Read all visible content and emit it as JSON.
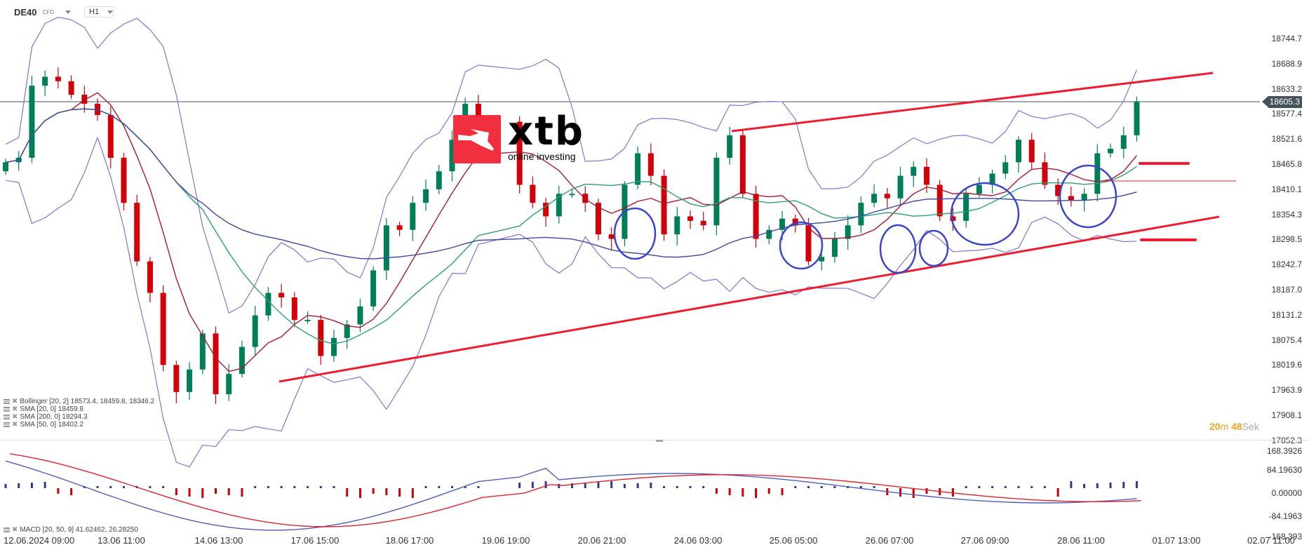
{
  "header": {
    "symbol": "DE40",
    "symbol_type": "CFD",
    "timeframe": "H1"
  },
  "logo": {
    "wordmark": "xtb",
    "tagline": "online investing",
    "brand_color": "#f12f3f"
  },
  "current_price": "18605.3",
  "timer": {
    "minutes": "20",
    "min_unit": "m",
    "seconds": "48",
    "sec_unit": "Sek"
  },
  "colors": {
    "bull": "#007e57",
    "bear": "#d40008",
    "bollinger": "#8a6fd6",
    "sma20": "#a81a2e",
    "sma50": "#2f9e77",
    "sma200": "#3a4aa0",
    "trendline": "#ee1c2e",
    "circle": "#3a46c8",
    "macd": "#4f5fb8",
    "signal": "#e0242f",
    "hist_pos": "#2e3a96",
    "hist_neg": "#cc0000"
  },
  "legend": [
    {
      "label": "Bollinger  [20, 2] 18573.4,  18459.8,  18346.2"
    },
    {
      "label": "SMA [20, 0] 18459.8"
    },
    {
      "label": "SMA [200, 0] 18294.3"
    },
    {
      "label": "SMA [50, 0] 18402.2"
    }
  ],
  "macd_legend": {
    "label": "MACD  [20, 50, 9] 41.62462,  26.28250"
  },
  "chart_data": [
    {
      "type": "candlestick",
      "title": "DE40 CFD H1",
      "xlabel": "",
      "ylabel": "",
      "ylim": [
        17852.3,
        18744.7
      ],
      "grid": false,
      "y_ticks": [
        "18744.7",
        "18688.9",
        "18633.2",
        "18577.4",
        "18521.6",
        "18465.8",
        "18410.1",
        "18354.3",
        "18298.5",
        "18242.7",
        "18187.0",
        "18131.2",
        "18075.4",
        "18019.6",
        "17963.9",
        "17908.1",
        "17852.3"
      ],
      "x_ticks": [
        "12.06.2024  09:00",
        "13.06  11:00",
        "14.06  13:00",
        "17.06  15:00",
        "18.06  17:00",
        "19.06  19:00",
        "20.06  21:00",
        "24.06  03:00",
        "25.06  05:00",
        "26.06  07:00",
        "27.06  09:00",
        "28.06  11:00",
        "01.07  13:00",
        "02.07  11:00"
      ],
      "last_price": 18605.3,
      "indicators": [
        {
          "name": "Bollinger [20, 2]",
          "values": [
            18573.4,
            18459.8,
            18346.2
          ]
        },
        {
          "name": "SMA [20, 0]",
          "value": 18459.8
        },
        {
          "name": "SMA [200, 0]",
          "value": 18294.3
        },
        {
          "name": "SMA [50, 0]",
          "value": 18402.2
        }
      ],
      "annotations": [
        "Rising channel: lower trendline from ~17.06 low (~18000) to ~18330 by 01.07; upper trendline from ~24.06 (~18540) to ~18650",
        "Blue circles marking pullbacks to support: 20.06, 25.06, 26.06, 26.06, 27.06, 28.06",
        "Short red horizontal marks near 18470 and 18290 right of last candle; thin red line near 18420"
      ],
      "candles_approx_close": [
        18470,
        18480,
        18640,
        18660,
        18650,
        18620,
        18600,
        18575,
        18480,
        18380,
        18250,
        18180,
        18020,
        17960,
        18010,
        18090,
        17955,
        18000,
        18060,
        18130,
        18180,
        18170,
        18120,
        18120,
        18040,
        18080,
        18110,
        18150,
        18230,
        18330,
        18320,
        18380,
        18410,
        18450,
        18520,
        18600,
        18560,
        18420,
        18380,
        18350,
        18400,
        18400,
        18380,
        18310,
        18300,
        18420,
        18490,
        18440,
        18310,
        18350,
        18340,
        18330,
        18480,
        18530,
        18400,
        18300,
        18320,
        18345,
        18330,
        18250,
        18260,
        18300,
        18330,
        18380,
        18400,
        18390,
        18440,
        18460,
        18420,
        18350,
        18340,
        18400,
        18420,
        18445,
        18470,
        18520,
        18470,
        18420,
        18395,
        18385,
        18400,
        18490,
        18500,
        18530,
        18605
      ]
    },
    {
      "type": "line",
      "title": "MACD [20, 50, 9]",
      "ylim": [
        -168.393,
        168.3926
      ],
      "y_ticks": [
        "168.3926",
        "84.19630",
        "0.00000",
        "-84.1963",
        "-168.393"
      ],
      "series": [
        {
          "name": "MACD",
          "last": 41.62462
        },
        {
          "name": "Signal",
          "last": 26.2825
        }
      ]
    }
  ]
}
